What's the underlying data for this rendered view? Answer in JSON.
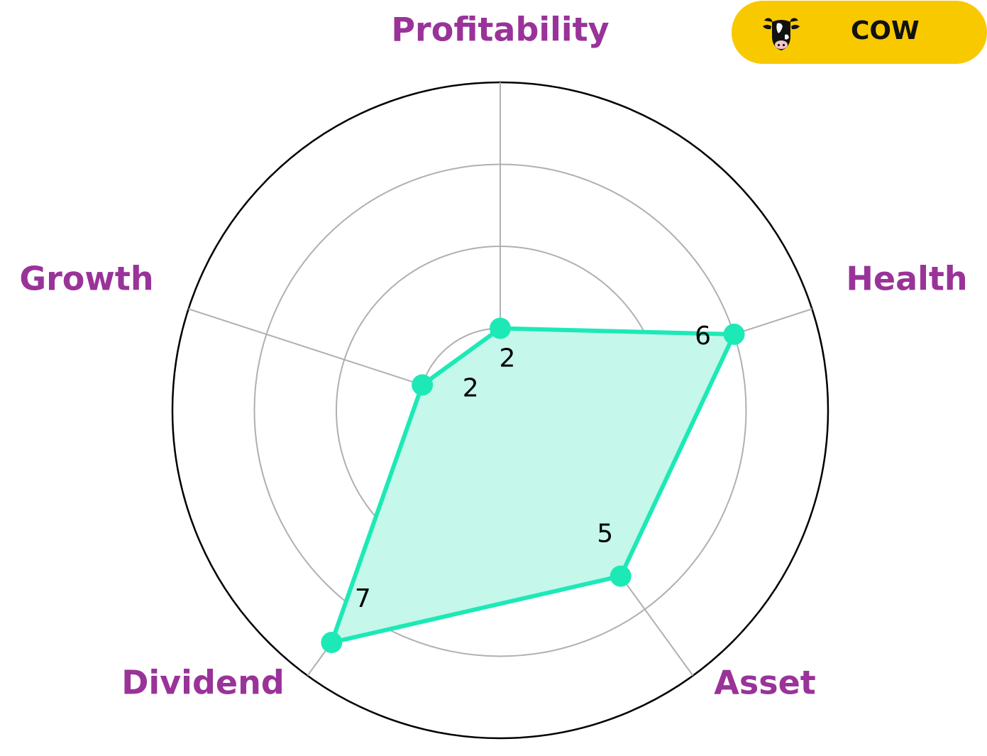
{
  "ticker": {
    "symbol": "COW",
    "icon": "cow-head-icon",
    "background": "#f9c900"
  },
  "colors": {
    "series": "#1de9b6",
    "fill": "#c5f7ea",
    "axis_label": "#993399",
    "grid": "#b0b0b0",
    "outer_ring": "#000000"
  },
  "chart_data": {
    "type": "radar",
    "categories": [
      "Profitability",
      "Health",
      "Asset",
      "Dividend",
      "Growth"
    ],
    "values": [
      2,
      6,
      5,
      7,
      2
    ],
    "value_labels": [
      "2",
      "6",
      "5",
      "7",
      "2"
    ],
    "rlim": [
      0,
      8
    ],
    "grid_rings": [
      2,
      4,
      6,
      8
    ],
    "grid": true
  }
}
